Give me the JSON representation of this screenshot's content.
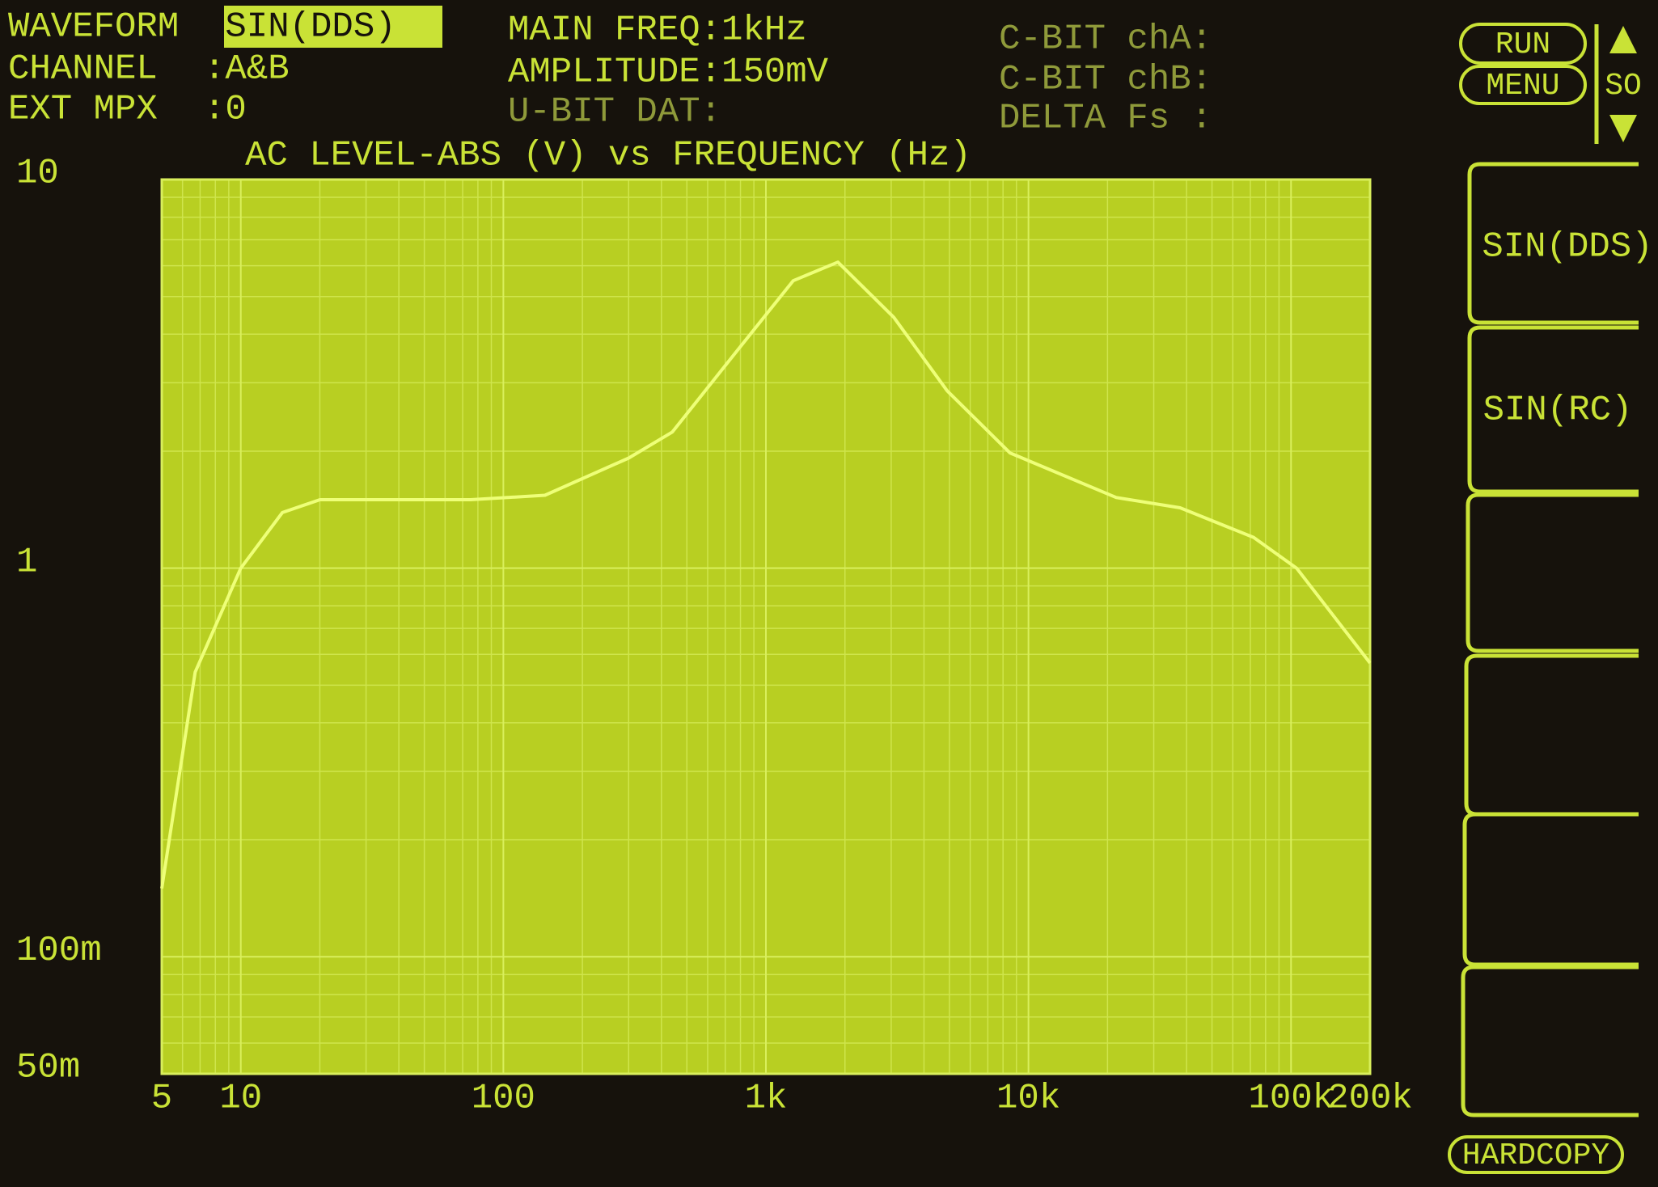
{
  "header": {
    "rows": [
      {
        "label": "WAVEFORM",
        "value": ":SIN(DDS)"
      },
      {
        "label": "CHANNEL",
        "value": ":A&B"
      },
      {
        "label": "EXT MPX",
        "value": ":0"
      }
    ],
    "main_freq": "MAIN FREQ:1kHz",
    "amplitude": "AMPLITUDE:150mV",
    "u_bit": "U-BIT DAT:",
    "c_bit_a": "C-BIT chA:",
    "c_bit_b": "C-BIT chB:",
    "delta_fs": "DELTA Fs :"
  },
  "side": {
    "run": "RUN",
    "menu": "MENU",
    "so": "SO",
    "softkeys": [
      "SIN(DDS)",
      "SIN(RC)"
    ],
    "hardcopy": "HARDCOPY"
  },
  "chart_data": {
    "type": "line",
    "title": "AC LEVEL-ABS (V) vs FREQUENCY (Hz)",
    "log_x": true,
    "log_y": true,
    "grid": true,
    "minor_grid": true,
    "xlim": [
      5,
      200000
    ],
    "ylim": [
      0.05,
      10
    ],
    "xticks": [
      5,
      10,
      100,
      {
        "value": 1000,
        "label": "1k"
      },
      {
        "value": 10000,
        "label": "10k"
      },
      {
        "value": 100000,
        "label": "100k"
      },
      {
        "value": 200000,
        "label": "200k"
      }
    ],
    "yticks": [
      10,
      1,
      {
        "value": 0.1,
        "label": "100m"
      },
      {
        "value": 0.05,
        "label": "50m"
      }
    ],
    "series": [
      {
        "color": "#eeff78",
        "x": [
          5,
          6.7,
          10,
          14.4,
          20,
          75,
          144,
          300,
          440,
          760,
          1270,
          1880,
          3070,
          4900,
          8500,
          21600,
          37800,
          72000,
          105000,
          200000
        ],
        "values": [
          0.15,
          0.54,
          1.0,
          1.39,
          1.5,
          1.5,
          1.54,
          1.92,
          2.24,
          3.56,
          5.49,
          6.13,
          4.42,
          2.86,
          1.98,
          1.52,
          1.43,
          1.2,
          1.0,
          0.57
        ]
      }
    ]
  }
}
